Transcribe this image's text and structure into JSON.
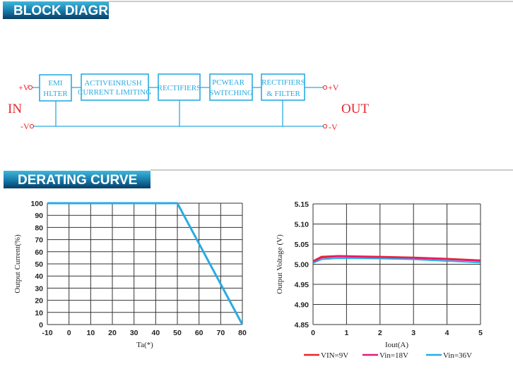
{
  "sections": {
    "block_diagram_title": "BLOCK DIAGRAM",
    "derating_title": "DERATING CURVE"
  },
  "block_diagram": {
    "input_label": "IN",
    "output_label": "OUT",
    "in_plus": "+V",
    "in_minus": "-V",
    "out_plus": "+V",
    "out_minus": "-V",
    "blocks": [
      {
        "lines": [
          "EMI",
          "HLTER"
        ]
      },
      {
        "lines": [
          "ACTIVEINRUSH",
          "CURRENT  LIMITING"
        ]
      },
      {
        "lines": [
          "RECTIFIERS"
        ]
      },
      {
        "lines": [
          "PCWEAR",
          "SWITCHING"
        ]
      },
      {
        "lines": [
          "RECTIFIERS",
          "& FILTER"
        ]
      }
    ],
    "colors": {
      "blocks": "#29abe2",
      "labels": "#e8262b",
      "banner": "#0b5a86"
    }
  },
  "chart_data": [
    {
      "type": "line",
      "title": "",
      "xlabel": "Ta(*)",
      "ylabel": "Output Current(%)",
      "xlim": [
        -10,
        80
      ],
      "ylim": [
        0,
        100
      ],
      "xticks": [
        -10,
        0,
        10,
        20,
        30,
        40,
        50,
        60,
        70,
        80
      ],
      "yticks": [
        0,
        10,
        20,
        30,
        40,
        50,
        60,
        70,
        80,
        90,
        100
      ],
      "grid": true,
      "series": [
        {
          "color": "#29abe2",
          "x": [
            -10,
            50,
            80
          ],
          "y": [
            100,
            100,
            0
          ]
        }
      ]
    },
    {
      "type": "line",
      "title": "",
      "xlabel": "Iout(A)",
      "ylabel": "Output Voltage  (V)",
      "xlim": [
        0,
        5
      ],
      "ylim": [
        4.85,
        5.15
      ],
      "xticks": [
        0,
        1,
        2,
        3,
        4,
        5
      ],
      "yticks": [
        "4.85",
        "4.90",
        "4.95",
        "5.00",
        "5.05",
        "5.10",
        "5.15"
      ],
      "grid": true,
      "legend": "bottom",
      "series": [
        {
          "name": "VIN=9V",
          "color": "#e8262b",
          "x": [
            0,
            0.25,
            0.75,
            2,
            3,
            4,
            5
          ],
          "y": [
            5.008,
            5.019,
            5.021,
            5.019,
            5.017,
            5.014,
            5.01
          ]
        },
        {
          "name": "Vin=18V",
          "color": "#e6197f",
          "x": [
            0,
            0.25,
            0.75,
            2,
            3,
            4,
            5
          ],
          "y": [
            5.006,
            5.016,
            5.019,
            5.017,
            5.015,
            5.012,
            5.008
          ]
        },
        {
          "name": "Vin=36V",
          "color": "#29abe2",
          "x": [
            0,
            0.25,
            0.75,
            2,
            3,
            4,
            5
          ],
          "y": [
            5.003,
            5.012,
            5.015,
            5.014,
            5.012,
            5.008,
            5.004
          ]
        }
      ]
    }
  ]
}
